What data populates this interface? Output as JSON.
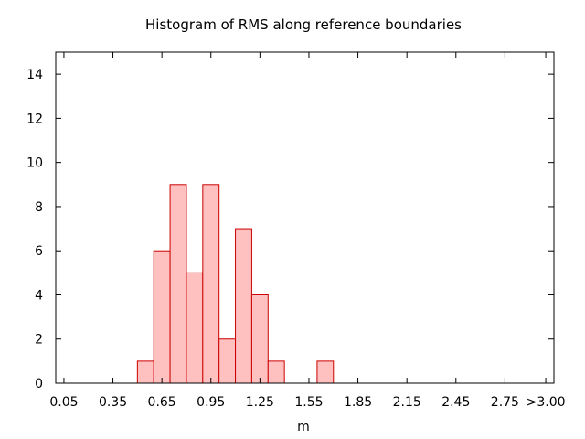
{
  "chart_data": {
    "type": "bar",
    "title": "Histogram of RMS along reference boundaries",
    "xlabel": "m",
    "ylabel": "",
    "ylim": [
      0,
      15
    ],
    "xlim": [
      0,
      3.05
    ],
    "bin_width": 0.1,
    "x_ticks": [
      {
        "value": 0.05,
        "label": "0.05"
      },
      {
        "value": 0.35,
        "label": "0.35"
      },
      {
        "value": 0.65,
        "label": "0.65"
      },
      {
        "value": 0.95,
        "label": "0.95"
      },
      {
        "value": 1.25,
        "label": "1.25"
      },
      {
        "value": 1.55,
        "label": "1.55"
      },
      {
        "value": 1.85,
        "label": "1.85"
      },
      {
        "value": 2.15,
        "label": "2.15"
      },
      {
        "value": 2.45,
        "label": "2.45"
      },
      {
        "value": 2.75,
        "label": "2.75"
      },
      {
        "value": 3.0,
        "label": ">3.00"
      }
    ],
    "y_ticks": [
      0,
      2,
      4,
      6,
      8,
      10,
      12,
      14
    ],
    "bins": [
      {
        "center": 0.55,
        "count": 1
      },
      {
        "center": 0.65,
        "count": 6
      },
      {
        "center": 0.75,
        "count": 9
      },
      {
        "center": 0.85,
        "count": 5
      },
      {
        "center": 0.95,
        "count": 9
      },
      {
        "center": 1.05,
        "count": 2
      },
      {
        "center": 1.15,
        "count": 7
      },
      {
        "center": 1.25,
        "count": 4
      },
      {
        "center": 1.35,
        "count": 1
      },
      {
        "center": 1.65,
        "count": 1
      }
    ],
    "colors": {
      "bar_fill": "#ffc0c0",
      "bar_stroke": "#cc0000",
      "axis": "#000000"
    },
    "grid": false,
    "legend": "none"
  }
}
